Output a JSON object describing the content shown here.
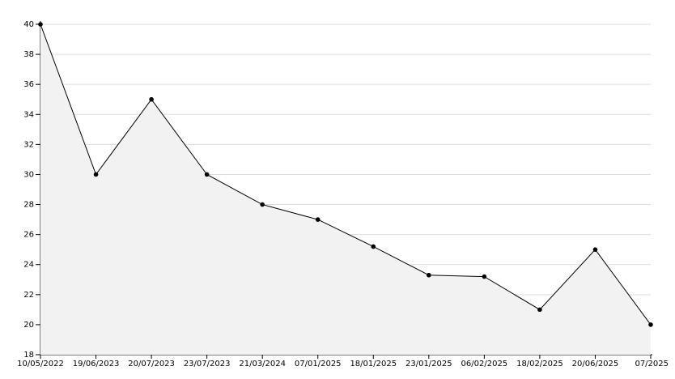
{
  "chart_data": {
    "type": "line",
    "categories": [
      "10/05/2022",
      "19/06/2023",
      "20/07/2023",
      "23/07/2023",
      "21/03/2024",
      "07/01/2025",
      "18/01/2025",
      "23/01/2025",
      "06/02/2025",
      "18/02/2025",
      "20/06/2025",
      "07/2025"
    ],
    "values": [
      40,
      30,
      35,
      30,
      28,
      27,
      25.2,
      23.3,
      23.2,
      21,
      25,
      20
    ],
    "color": "#000000",
    "fill": "#f2f2f2",
    "ylim": [
      18,
      40
    ],
    "yticks": [
      18,
      20,
      22,
      24,
      26,
      28,
      30,
      32,
      34,
      36,
      38,
      40
    ],
    "grid": true
  }
}
